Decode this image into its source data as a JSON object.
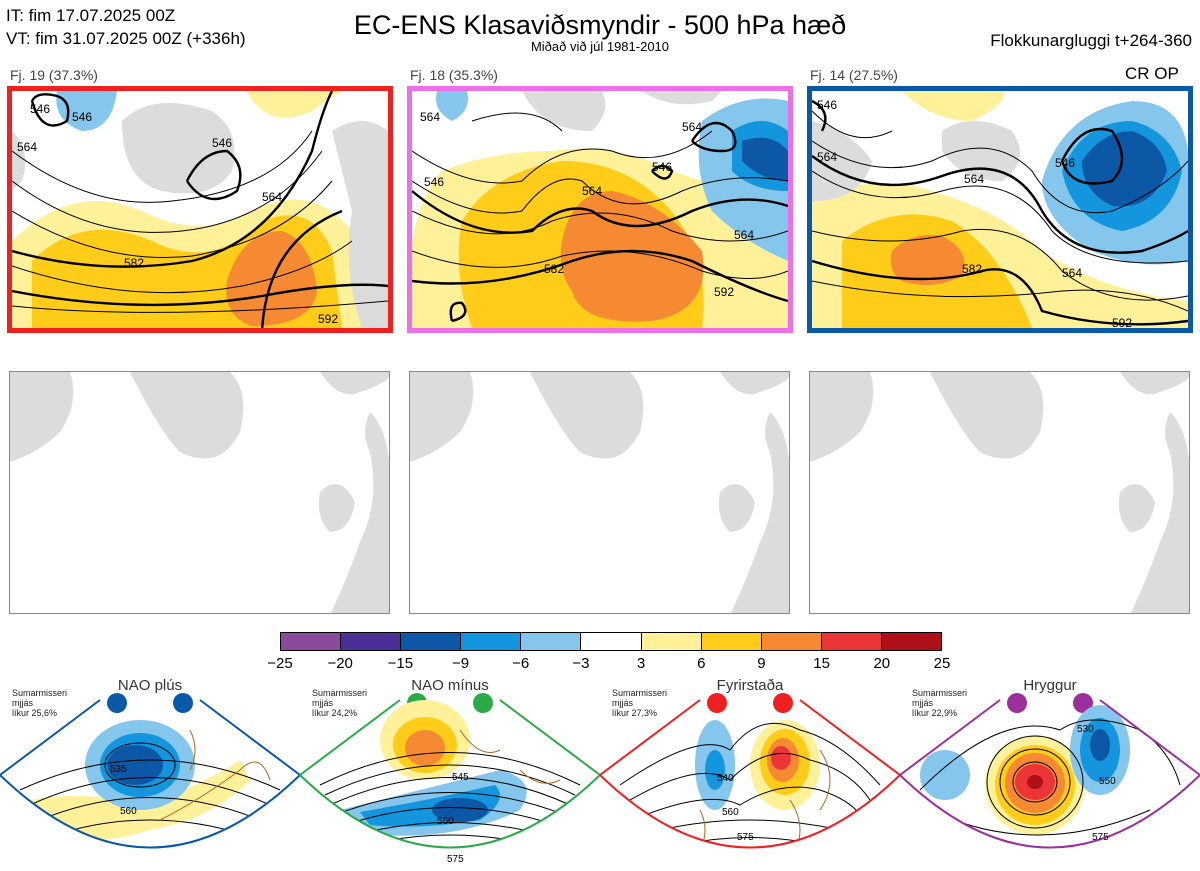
{
  "header": {
    "init_time": "IT: fim 17.07.2025 00Z",
    "valid_time": "VT: fim 31.07.2025 00Z  (+336h)",
    "title": "EC-ENS Klasaviðsmyndir - 500 hPa hæð",
    "subtitle": "Miðað við júl 1981-2010",
    "cluster_window": "Flokkunargluggi t+264-360"
  },
  "clusters": [
    {
      "label": "Fj. 19 (37.3%)",
      "frame_color": "#ee2020",
      "contours": [
        "546",
        "564",
        "582",
        "546",
        "564",
        "546",
        "592"
      ]
    },
    {
      "label": "Fj. 18 (35.3%)",
      "frame_color": "#ee70e8",
      "contours": [
        "564",
        "546",
        "564",
        "546",
        "564",
        "582",
        "592",
        "564"
      ]
    },
    {
      "label": "Fj. 14 (27.5%)",
      "frame_color": "#0a58a8",
      "contours": [
        "546",
        "564",
        "564",
        "582",
        "546",
        "564",
        "592"
      ]
    }
  ],
  "cluster_regime_tag": "CR OP",
  "colorbar": {
    "ticks": [
      "−25",
      "−20",
      "−15",
      "−9",
      "−6",
      "−3",
      "3",
      "6",
      "9",
      "15",
      "20",
      "25"
    ],
    "colors": [
      "#8b4a9c",
      "#4b2f96",
      "#0d58a6",
      "#1396de",
      "#84c6ec",
      "#ffffff",
      "#fff09a",
      "#ffcc1a",
      "#f58a32",
      "#ec3536",
      "#ad1017"
    ]
  },
  "regimes": [
    {
      "name": "NAO plús",
      "info": "Sumarmisseri\nmjjás\nlíkur 25,6%",
      "color": "#0a58a8",
      "contours": [
        "535",
        "560"
      ]
    },
    {
      "name": "NAO mínus",
      "info": "Sumarmisseri\nmjjás\nlíkur 24,2%",
      "color": "#2aaa48",
      "contours": [
        "545",
        "560",
        "575"
      ]
    },
    {
      "name": "Fyrirstaða",
      "info": "Sumarmisseri\nmjjás\nlíkur 27,3%",
      "color": "#ee2020",
      "contours": [
        "540",
        "560",
        "575"
      ]
    },
    {
      "name": "Hryggur",
      "info": "Sumarmisseri\nmjjás\nlíkur 22,9%",
      "color": "#9b2f9b",
      "contours": [
        "530",
        "550",
        "575"
      ]
    }
  ]
}
